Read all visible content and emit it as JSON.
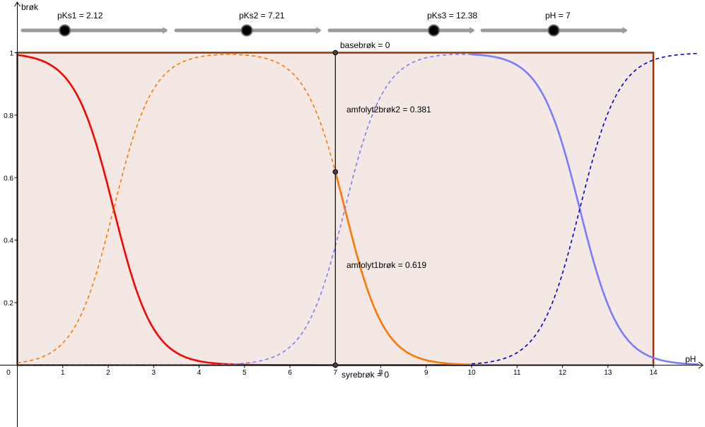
{
  "sliders": [
    {
      "label": "pKs1 = 2.12",
      "value": 2.12,
      "fraction": 0.295
    },
    {
      "label": "pKs2 = 7.21",
      "value": 7.21,
      "fraction": 0.495
    },
    {
      "label": "pKs3 = 12.38",
      "value": 12.38,
      "fraction": 0.73
    },
    {
      "label": "pH = 7",
      "value": 7,
      "fraction": 0.5
    }
  ],
  "chart_data": {
    "type": "line",
    "xlabel": "pH",
    "ylabel": "brøk",
    "xlim": [
      0,
      15
    ],
    "ylim": [
      0,
      1
    ],
    "x_ticks": [
      "0",
      "1",
      "2",
      "3",
      "4",
      "5",
      "6",
      "7",
      "8",
      "9",
      "10",
      "11",
      "12",
      "13",
      "14"
    ],
    "y_ticks": [
      "0.2",
      "0.4",
      "0.6",
      "0.8",
      "1"
    ],
    "region": {
      "x": [
        0,
        14
      ],
      "y": [
        0,
        1
      ],
      "fill": "#f3e8e4",
      "border": "#993300"
    },
    "pKs": [
      2.12,
      7.21,
      12.38
    ],
    "pH": 7,
    "series": [
      {
        "species": "syre",
        "color": "#ff0000",
        "dash": false,
        "range": "0-14"
      },
      {
        "species": "amfolyt1",
        "color": "#ff7700",
        "dash": true,
        "range": "0-7"
      },
      {
        "species": "amfolyt1",
        "color": "#ff7700",
        "dash": false,
        "range": "7-14"
      },
      {
        "species": "amfolyt2",
        "color": "#7b7bff",
        "dash": true,
        "range": "0-10"
      },
      {
        "species": "amfolyt2",
        "color": "#7b7bff",
        "dash": false,
        "range": "10-15"
      },
      {
        "species": "base",
        "color": "#0000cc",
        "dash": true,
        "range": "10-15"
      }
    ],
    "annotations": [
      {
        "text": "basebrøk = 0",
        "value": 0
      },
      {
        "text": "amfolyt2brøk2 = 0.381",
        "value": 0.381
      },
      {
        "text": "amfolyt1brøk = 0.619",
        "value": 0.619
      },
      {
        "text": "syrebrøk = 0",
        "value": 0
      }
    ]
  }
}
